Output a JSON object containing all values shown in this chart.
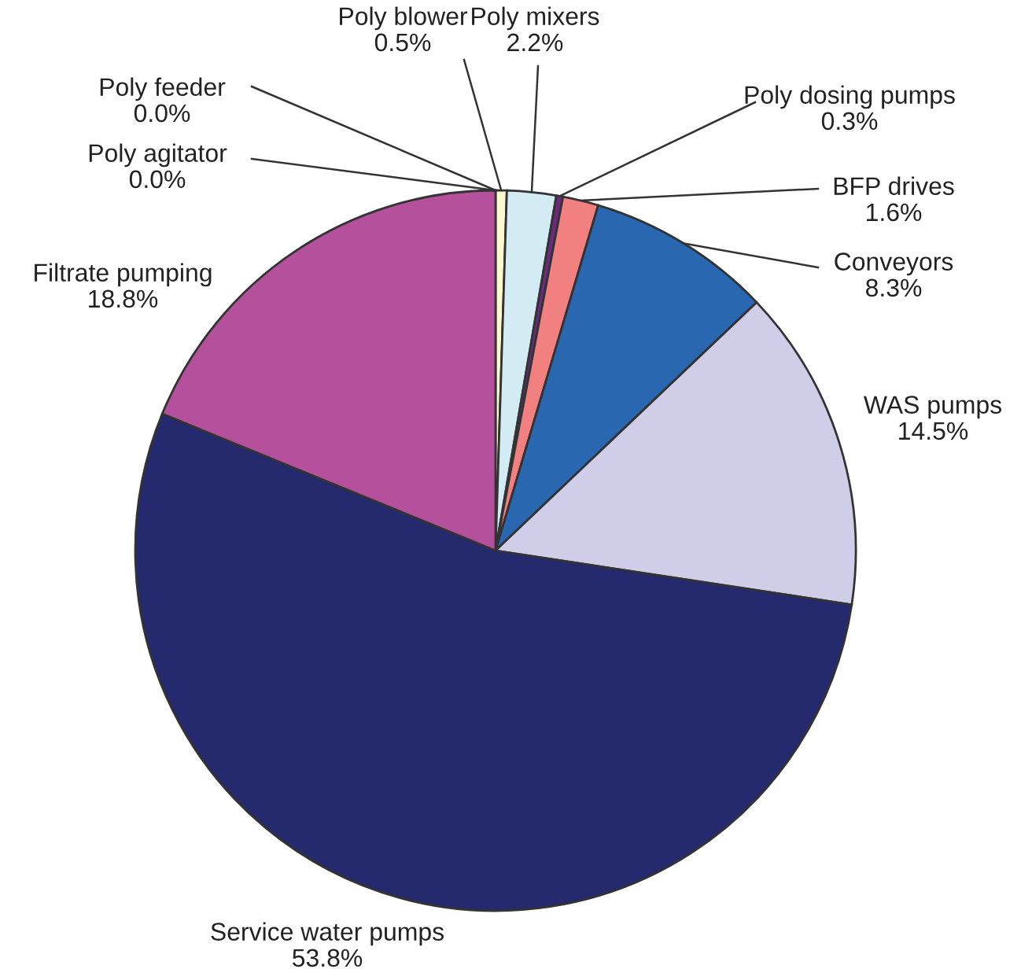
{
  "chart_data": {
    "type": "pie",
    "categories": [
      "Poly agitator",
      "Poly feeder",
      "Poly blower",
      "Poly mixers",
      "Poly dosing pumps",
      "BFP drives",
      "Conveyors",
      "WAS pumps",
      "Service water pumps",
      "Filtrate pumping"
    ],
    "values": [
      0.0,
      0.0,
      0.5,
      2.2,
      0.3,
      1.6,
      8.3,
      14.5,
      53.8,
      18.8
    ],
    "value_labels": [
      "0.0%",
      "0.0%",
      "0.5%",
      "2.2%",
      "0.3%",
      "1.6%",
      "8.3%",
      "14.5%",
      "53.8%",
      "18.8%"
    ],
    "colors": [
      "#f6f0c0",
      "#f6f0c0",
      "#fbf8d0",
      "#d3ecf3",
      "#6b2a7a",
      "#f28080",
      "#2a67b1",
      "#cfcde8",
      "#252a6e",
      "#b5509c"
    ],
    "legend": false
  }
}
